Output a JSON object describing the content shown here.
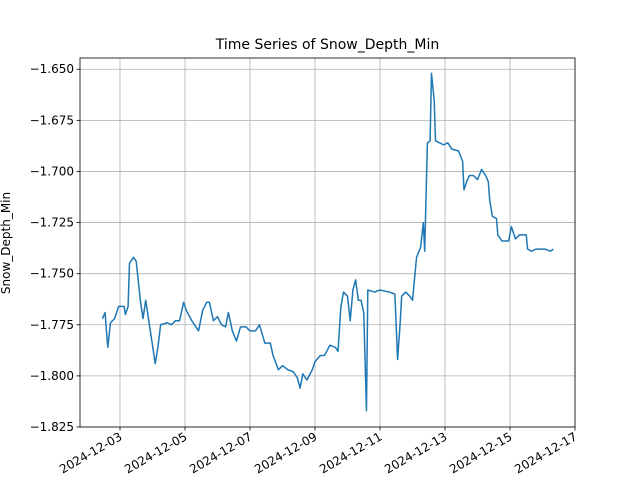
{
  "chart_data": {
    "type": "line",
    "title": "Time Series of Snow_Depth_Min",
    "y_label": "Snow_Depth_Min",
    "x": [
      "2024-12-02T11:00",
      "2024-12-02T13:00",
      "2024-12-02T14:00",
      "2024-12-02T15:00",
      "2024-12-02T17:00",
      "2024-12-02T20:00",
      "2024-12-02T23:00",
      "2024-12-03T03:00",
      "2024-12-03T04:00",
      "2024-12-03T06:00",
      "2024-12-03T07:00",
      "2024-12-03T10:00",
      "2024-12-03T12:00",
      "2024-12-03T15:00",
      "2024-12-03T17:00",
      "2024-12-03T19:00",
      "2024-12-03T21:00",
      "2024-12-04T00:00",
      "2024-12-04T02:00",
      "2024-12-04T04:00",
      "2024-12-04T06:00",
      "2024-12-04T11:00",
      "2024-12-04T14:00",
      "2024-12-04T17:00",
      "2024-12-04T20:00",
      "2024-12-04T23:00",
      "2024-12-05T01:00",
      "2024-12-05T05:00",
      "2024-12-05T10:00",
      "2024-12-05T13:00",
      "2024-12-05T16:00",
      "2024-12-05T18:00",
      "2024-12-05T21:00",
      "2024-12-06T00:00",
      "2024-12-06T03:00",
      "2024-12-06T06:00",
      "2024-12-06T08:00",
      "2024-12-06T11:00",
      "2024-12-06T14:00",
      "2024-12-06T17:00",
      "2024-12-06T21:00",
      "2024-12-07T00:00",
      "2024-12-07T04:00",
      "2024-12-07T07:00",
      "2024-12-07T11:00",
      "2024-12-07T15:00",
      "2024-12-07T17:00",
      "2024-12-07T21:00",
      "2024-12-08T00:00",
      "2024-12-08T04:00",
      "2024-12-08T08:00",
      "2024-12-08T11:00",
      "2024-12-08T13:00",
      "2024-12-08T15:00",
      "2024-12-08T18:00",
      "2024-12-08T22:00",
      "2024-12-09T00:00",
      "2024-12-09T04:00",
      "2024-12-09T07:00",
      "2024-12-09T11:00",
      "2024-12-09T15:00",
      "2024-12-09T17:00",
      "2024-12-09T19:00",
      "2024-12-09T21:00",
      "2024-12-10T00:00",
      "2024-12-10T02:00",
      "2024-12-10T04:00",
      "2024-12-10T06:00",
      "2024-12-10T08:00",
      "2024-12-10T10:00",
      "2024-12-10T12:00",
      "2024-12-10T14:00",
      "2024-12-10T15:00",
      "2024-12-10T20:00",
      "2024-12-11T00:00",
      "2024-12-11T07:00",
      "2024-12-11T11:00",
      "2024-12-11T13:00",
      "2024-12-11T15:00",
      "2024-12-11T16:00",
      "2024-12-11T19:00",
      "2024-12-11T22:00",
      "2024-12-12T00:00",
      "2024-12-12T03:00",
      "2024-12-12T06:00",
      "2024-12-12T08:00",
      "2024-12-12T09:00",
      "2024-12-12T11:00",
      "2024-12-12T13:00",
      "2024-12-12T14:00",
      "2024-12-12T16:00",
      "2024-12-12T17:00",
      "2024-12-12T20:00",
      "2024-12-12T23:00",
      "2024-12-13T02:00",
      "2024-12-13T05:00",
      "2024-12-13T10:00",
      "2024-12-13T13:00",
      "2024-12-13T14:00",
      "2024-12-13T16:00",
      "2024-12-13T18:00",
      "2024-12-13T21:00",
      "2024-12-14T00:00",
      "2024-12-14T03:00",
      "2024-12-14T06:00",
      "2024-12-14T08:00",
      "2024-12-14T09:00",
      "2024-12-14T11:00",
      "2024-12-14T14:00",
      "2024-12-14T15:00",
      "2024-12-14T18:00",
      "2024-12-14T23:00",
      "2024-12-15T01:00",
      "2024-12-15T04:00",
      "2024-12-15T07:00",
      "2024-12-15T12:00",
      "2024-12-15T13:00",
      "2024-12-15T16:00",
      "2024-12-15T19:00",
      "2024-12-16T02:00",
      "2024-12-16T06:00",
      "2024-12-16T08:00"
    ],
    "series": [
      {
        "name": "Snow_Depth_Min",
        "color": "#1f77b4",
        "values": [
          -1.772,
          -1.769,
          -1.778,
          -1.786,
          -1.774,
          -1.772,
          -1.766,
          -1.766,
          -1.77,
          -1.766,
          -1.745,
          -1.742,
          -1.744,
          -1.763,
          -1.772,
          -1.763,
          -1.772,
          -1.785,
          -1.794,
          -1.786,
          -1.775,
          -1.774,
          -1.775,
          -1.773,
          -1.773,
          -1.764,
          -1.768,
          -1.773,
          -1.778,
          -1.768,
          -1.764,
          -1.764,
          -1.773,
          -1.771,
          -1.775,
          -1.776,
          -1.769,
          -1.778,
          -1.783,
          -1.776,
          -1.776,
          -1.778,
          -1.778,
          -1.775,
          -1.784,
          -1.784,
          -1.79,
          -1.797,
          -1.795,
          -1.797,
          -1.798,
          -1.801,
          -1.806,
          -1.799,
          -1.802,
          -1.797,
          -1.793,
          -1.79,
          -1.79,
          -1.785,
          -1.786,
          -1.788,
          -1.767,
          -1.759,
          -1.761,
          -1.773,
          -1.758,
          -1.753,
          -1.763,
          -1.763,
          -1.769,
          -1.817,
          -1.758,
          -1.759,
          -1.758,
          -1.759,
          -1.76,
          -1.792,
          -1.773,
          -1.761,
          -1.759,
          -1.761,
          -1.763,
          -1.742,
          -1.737,
          -1.725,
          -1.739,
          -1.686,
          -1.685,
          -1.652,
          -1.665,
          -1.685,
          -1.686,
          -1.687,
          -1.686,
          -1.689,
          -1.69,
          -1.695,
          -1.709,
          -1.705,
          -1.702,
          -1.702,
          -1.704,
          -1.699,
          -1.702,
          -1.705,
          -1.714,
          -1.722,
          -1.723,
          -1.731,
          -1.734,
          -1.734,
          -1.727,
          -1.733,
          -1.731,
          -1.731,
          -1.738,
          -1.739,
          -1.738,
          -1.738,
          -1.739,
          -1.738
        ]
      }
    ],
    "xlim": [
      "2024-12-01T18:28",
      "2024-12-17T00:00"
    ],
    "xticks": [
      "2024-12-03",
      "2024-12-05",
      "2024-12-07",
      "2024-12-09",
      "2024-12-11",
      "2024-12-13",
      "2024-12-15",
      "2024-12-17"
    ],
    "ylim": [
      -1.825,
      -1.6445
    ],
    "yticks": [
      {
        "value": -1.825,
        "label": "−1.825"
      },
      {
        "value": -1.8,
        "label": "−1.800"
      },
      {
        "value": -1.775,
        "label": "−1.775"
      },
      {
        "value": -1.75,
        "label": "−1.750"
      },
      {
        "value": -1.725,
        "label": "−1.725"
      },
      {
        "value": -1.7,
        "label": "−1.700"
      },
      {
        "value": -1.675,
        "label": "−1.675"
      },
      {
        "value": -1.65,
        "label": "−1.650"
      }
    ],
    "grid": true
  }
}
